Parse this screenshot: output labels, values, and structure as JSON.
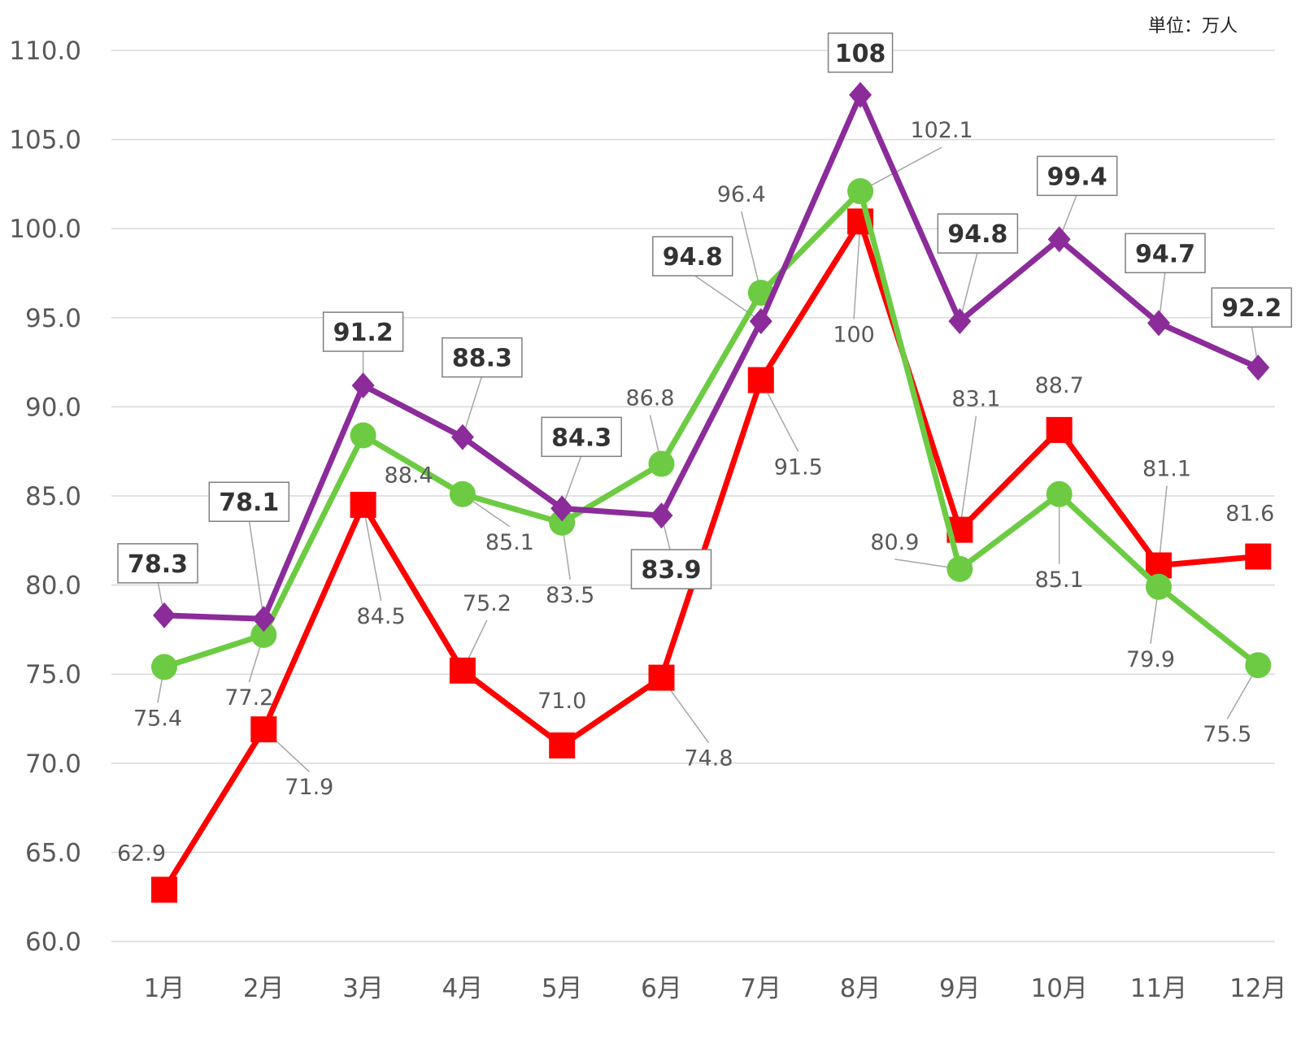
{
  "unit_label": "単位：万人",
  "chart_data": {
    "type": "line",
    "title": "",
    "xlabel": "",
    "ylabel": "",
    "unit": "単位：万人",
    "ylim": [
      60,
      110
    ],
    "ytick_step": 5,
    "yticks": [
      "60.0",
      "65.0",
      "70.0",
      "75.0",
      "80.0",
      "85.0",
      "90.0",
      "95.0",
      "100.0",
      "105.0",
      "110.0"
    ],
    "categories": [
      "1月",
      "2月",
      "3月",
      "4月",
      "5月",
      "6月",
      "7月",
      "8月",
      "9月",
      "10月",
      "11月",
      "12月"
    ],
    "series": [
      {
        "name": "purple",
        "color": "#8B2C9A",
        "marker": "diamond",
        "values": [
          78.3,
          78.1,
          91.2,
          88.3,
          84.3,
          83.9,
          94.8,
          107.5,
          94.8,
          99.4,
          94.7,
          92.2
        ],
        "labels": [
          "78.3",
          "78.1",
          "91.2",
          "88.3",
          "84.3",
          "83.9",
          "94.8",
          "108",
          "94.8",
          "99.4",
          "94.7",
          "92.2"
        ],
        "label_style": "boxed-bold"
      },
      {
        "name": "green",
        "color": "#6CCB42",
        "marker": "circle",
        "values": [
          75.4,
          77.2,
          88.4,
          85.1,
          83.5,
          86.8,
          96.4,
          102.1,
          80.9,
          85.1,
          79.9,
          75.5
        ],
        "labels": [
          "75.4",
          "77.2",
          "88.4",
          "85.1",
          "83.5",
          "86.8",
          "96.4",
          "102.1",
          "80.9",
          "85.1",
          "79.9",
          "75.5"
        ],
        "label_style": "plain"
      },
      {
        "name": "red",
        "color": "#FF0000",
        "marker": "square",
        "values": [
          62.9,
          71.9,
          84.5,
          75.2,
          71.0,
          74.8,
          91.5,
          100.4,
          83.1,
          88.7,
          81.1,
          81.6
        ],
        "labels": [
          "62.9",
          "71.9",
          "84.5",
          "75.2",
          "71.0",
          "74.8",
          "91.5",
          "100",
          "83.1",
          "88.7",
          "81.1",
          "81.6"
        ],
        "label_style": "plain"
      }
    ],
    "grid": true,
    "legend": "none"
  }
}
